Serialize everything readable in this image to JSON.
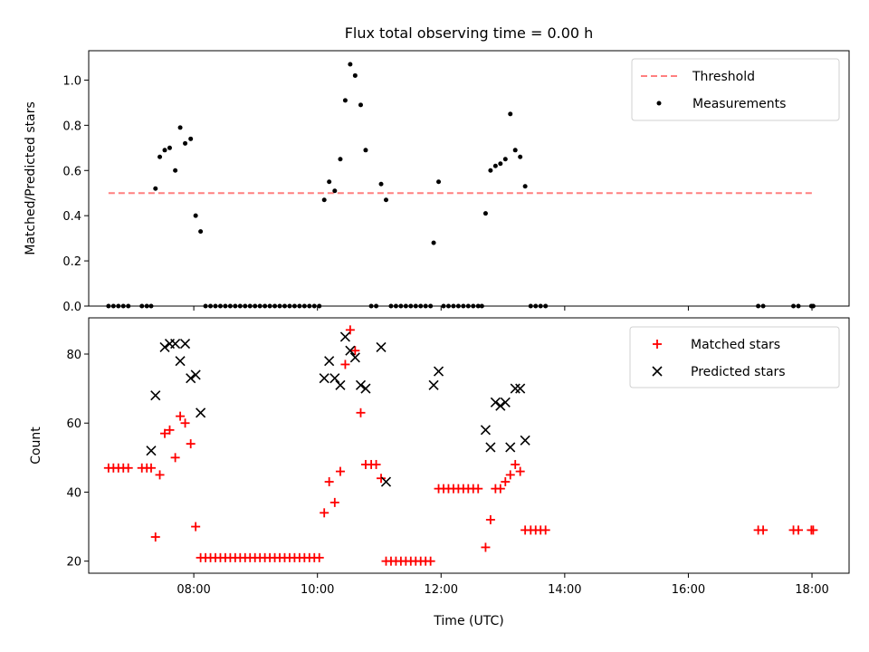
{
  "chart_data": [
    {
      "type": "scatter",
      "title": "Flux total observing time = 0.00 h",
      "xlabel": "",
      "ylabel": "Matched/Predicted stars",
      "xlim": [
        6.3,
        18.6
      ],
      "ylim": [
        0,
        1.13
      ],
      "grid": false,
      "legend_position": "top-right",
      "yticks": [
        0.0,
        0.2,
        0.4,
        0.6,
        0.8,
        1.0
      ],
      "ytick_labels": [
        "0.0",
        "0.2",
        "0.4",
        "0.6",
        "0.8",
        "1.0"
      ],
      "xticks": [
        8,
        10,
        12,
        14,
        16,
        18
      ],
      "xtick_labels": [],
      "threshold": {
        "name": "Threshold",
        "color": "#ff7f7f",
        "style": "dashed",
        "x": [
          6.62,
          18.0
        ],
        "y": 0.5
      },
      "series": [
        {
          "name": "Measurements",
          "color": "#000000",
          "marker": "dot",
          "points": [
            [
              6.62,
              0
            ],
            [
              6.7,
              0
            ],
            [
              6.78,
              0
            ],
            [
              6.86,
              0
            ],
            [
              6.94,
              0
            ],
            [
              7.16,
              0
            ],
            [
              7.24,
              0
            ],
            [
              7.31,
              0
            ],
            [
              7.38,
              0.52
            ],
            [
              7.45,
              0.66
            ],
            [
              7.53,
              0.69
            ],
            [
              7.61,
              0.7
            ],
            [
              7.7,
              0.6
            ],
            [
              7.78,
              0.79
            ],
            [
              7.86,
              0.72
            ],
            [
              7.95,
              0.74
            ],
            [
              8.03,
              0.4
            ],
            [
              8.11,
              0.33
            ],
            [
              8.19,
              0
            ],
            [
              8.27,
              0
            ],
            [
              8.35,
              0
            ],
            [
              8.43,
              0
            ],
            [
              8.51,
              0
            ],
            [
              8.59,
              0
            ],
            [
              8.67,
              0
            ],
            [
              8.75,
              0
            ],
            [
              8.83,
              0
            ],
            [
              8.91,
              0
            ],
            [
              8.99,
              0
            ],
            [
              9.07,
              0
            ],
            [
              9.15,
              0
            ],
            [
              9.23,
              0
            ],
            [
              9.31,
              0
            ],
            [
              9.39,
              0
            ],
            [
              9.47,
              0
            ],
            [
              9.55,
              0
            ],
            [
              9.63,
              0
            ],
            [
              9.71,
              0
            ],
            [
              9.79,
              0
            ],
            [
              9.87,
              0
            ],
            [
              9.95,
              0
            ],
            [
              10.03,
              0
            ],
            [
              10.11,
              0.47
            ],
            [
              10.19,
              0.55
            ],
            [
              10.28,
              0.51
            ],
            [
              10.37,
              0.65
            ],
            [
              10.45,
              0.91
            ],
            [
              10.53,
              1.07
            ],
            [
              10.61,
              1.02
            ],
            [
              10.7,
              0.89
            ],
            [
              10.78,
              0.69
            ],
            [
              10.87,
              0
            ],
            [
              10.95,
              0
            ],
            [
              11.03,
              0.54
            ],
            [
              11.11,
              0.47
            ],
            [
              11.19,
              0
            ],
            [
              11.27,
              0
            ],
            [
              11.35,
              0
            ],
            [
              11.43,
              0
            ],
            [
              11.51,
              0
            ],
            [
              11.59,
              0
            ],
            [
              11.67,
              0
            ],
            [
              11.75,
              0
            ],
            [
              11.83,
              0
            ],
            [
              11.88,
              0.28
            ],
            [
              11.96,
              0.55
            ],
            [
              12.04,
              0
            ],
            [
              12.12,
              0
            ],
            [
              12.2,
              0
            ],
            [
              12.28,
              0
            ],
            [
              12.36,
              0
            ],
            [
              12.44,
              0
            ],
            [
              12.52,
              0
            ],
            [
              12.6,
              0
            ],
            [
              12.66,
              0
            ],
            [
              12.72,
              0.41
            ],
            [
              12.8,
              0.6
            ],
            [
              12.88,
              0.62
            ],
            [
              12.96,
              0.63
            ],
            [
              13.04,
              0.65
            ],
            [
              13.12,
              0.85
            ],
            [
              13.2,
              0.69
            ],
            [
              13.28,
              0.66
            ],
            [
              13.36,
              0.53
            ],
            [
              13.45,
              0
            ],
            [
              13.53,
              0
            ],
            [
              13.61,
              0
            ],
            [
              13.69,
              0
            ],
            [
              17.13,
              0
            ],
            [
              17.21,
              0
            ],
            [
              17.7,
              0
            ],
            [
              17.78,
              0
            ],
            [
              17.99,
              0
            ],
            [
              18.02,
              0
            ]
          ]
        }
      ]
    },
    {
      "type": "scatter",
      "title": "",
      "xlabel": "Time (UTC)",
      "ylabel": "Count",
      "xlim": [
        6.3,
        18.6
      ],
      "ylim": [
        16.5,
        90.5
      ],
      "grid": false,
      "legend_position": "top-right",
      "yticks": [
        20,
        40,
        60,
        80
      ],
      "ytick_labels": [
        "20",
        "40",
        "60",
        "80"
      ],
      "xticks": [
        8,
        10,
        12,
        14,
        16,
        18
      ],
      "xtick_labels": [
        "08:00",
        "10:00",
        "12:00",
        "14:00",
        "16:00",
        "18:00"
      ],
      "series": [
        {
          "name": "Matched stars",
          "color": "#ff0000",
          "marker": "plus",
          "points": [
            [
              6.62,
              47
            ],
            [
              6.7,
              47
            ],
            [
              6.78,
              47
            ],
            [
              6.86,
              47
            ],
            [
              6.94,
              47
            ],
            [
              7.16,
              47
            ],
            [
              7.24,
              47
            ],
            [
              7.31,
              47
            ],
            [
              7.38,
              27
            ],
            [
              7.45,
              45
            ],
            [
              7.53,
              57
            ],
            [
              7.61,
              58
            ],
            [
              7.7,
              50
            ],
            [
              7.78,
              62
            ],
            [
              7.86,
              60
            ],
            [
              7.95,
              54
            ],
            [
              8.03,
              30
            ],
            [
              8.11,
              21
            ],
            [
              8.19,
              21
            ],
            [
              8.27,
              21
            ],
            [
              8.35,
              21
            ],
            [
              8.43,
              21
            ],
            [
              8.51,
              21
            ],
            [
              8.59,
              21
            ],
            [
              8.67,
              21
            ],
            [
              8.75,
              21
            ],
            [
              8.83,
              21
            ],
            [
              8.91,
              21
            ],
            [
              8.99,
              21
            ],
            [
              9.07,
              21
            ],
            [
              9.15,
              21
            ],
            [
              9.23,
              21
            ],
            [
              9.31,
              21
            ],
            [
              9.39,
              21
            ],
            [
              9.47,
              21
            ],
            [
              9.55,
              21
            ],
            [
              9.63,
              21
            ],
            [
              9.71,
              21
            ],
            [
              9.79,
              21
            ],
            [
              9.87,
              21
            ],
            [
              9.95,
              21
            ],
            [
              10.03,
              21
            ],
            [
              10.11,
              34
            ],
            [
              10.19,
              43
            ],
            [
              10.28,
              37
            ],
            [
              10.37,
              46
            ],
            [
              10.45,
              77
            ],
            [
              10.53,
              87
            ],
            [
              10.61,
              81
            ],
            [
              10.7,
              63
            ],
            [
              10.78,
              48
            ],
            [
              10.87,
              48
            ],
            [
              10.95,
              48
            ],
            [
              11.03,
              44
            ],
            [
              11.11,
              20
            ],
            [
              11.19,
              20
            ],
            [
              11.27,
              20
            ],
            [
              11.35,
              20
            ],
            [
              11.43,
              20
            ],
            [
              11.51,
              20
            ],
            [
              11.59,
              20
            ],
            [
              11.67,
              20
            ],
            [
              11.75,
              20
            ],
            [
              11.83,
              20
            ],
            [
              11.96,
              41
            ],
            [
              12.04,
              41
            ],
            [
              12.12,
              41
            ],
            [
              12.2,
              41
            ],
            [
              12.28,
              41
            ],
            [
              12.36,
              41
            ],
            [
              12.44,
              41
            ],
            [
              12.52,
              41
            ],
            [
              12.6,
              41
            ],
            [
              12.72,
              24
            ],
            [
              12.8,
              32
            ],
            [
              12.88,
              41
            ],
            [
              12.96,
              41
            ],
            [
              13.04,
              43
            ],
            [
              13.12,
              45
            ],
            [
              13.2,
              48
            ],
            [
              13.28,
              46
            ],
            [
              13.36,
              29
            ],
            [
              13.45,
              29
            ],
            [
              13.53,
              29
            ],
            [
              13.61,
              29
            ],
            [
              13.69,
              29
            ],
            [
              17.13,
              29
            ],
            [
              17.21,
              29
            ],
            [
              17.7,
              29
            ],
            [
              17.78,
              29
            ],
            [
              17.99,
              29
            ],
            [
              18.02,
              29
            ]
          ]
        },
        {
          "name": "Predicted stars",
          "color": "#000000",
          "marker": "x",
          "points": [
            [
              7.31,
              52
            ],
            [
              7.38,
              68
            ],
            [
              7.53,
              82
            ],
            [
              7.61,
              83
            ],
            [
              7.7,
              83
            ],
            [
              7.78,
              78
            ],
            [
              7.86,
              83
            ],
            [
              7.95,
              73
            ],
            [
              8.03,
              74
            ],
            [
              8.11,
              63
            ],
            [
              10.11,
              73
            ],
            [
              10.19,
              78
            ],
            [
              10.28,
              73
            ],
            [
              10.37,
              71
            ],
            [
              10.45,
              85
            ],
            [
              10.53,
              81
            ],
            [
              10.61,
              79
            ],
            [
              10.7,
              71
            ],
            [
              10.78,
              70
            ],
            [
              11.03,
              82
            ],
            [
              11.11,
              43
            ],
            [
              11.88,
              71
            ],
            [
              11.96,
              75
            ],
            [
              12.72,
              58
            ],
            [
              12.8,
              53
            ],
            [
              12.88,
              66
            ],
            [
              12.96,
              65
            ],
            [
              13.04,
              66
            ],
            [
              13.12,
              53
            ],
            [
              13.2,
              70
            ],
            [
              13.28,
              70
            ],
            [
              13.36,
              55
            ]
          ]
        }
      ]
    }
  ]
}
